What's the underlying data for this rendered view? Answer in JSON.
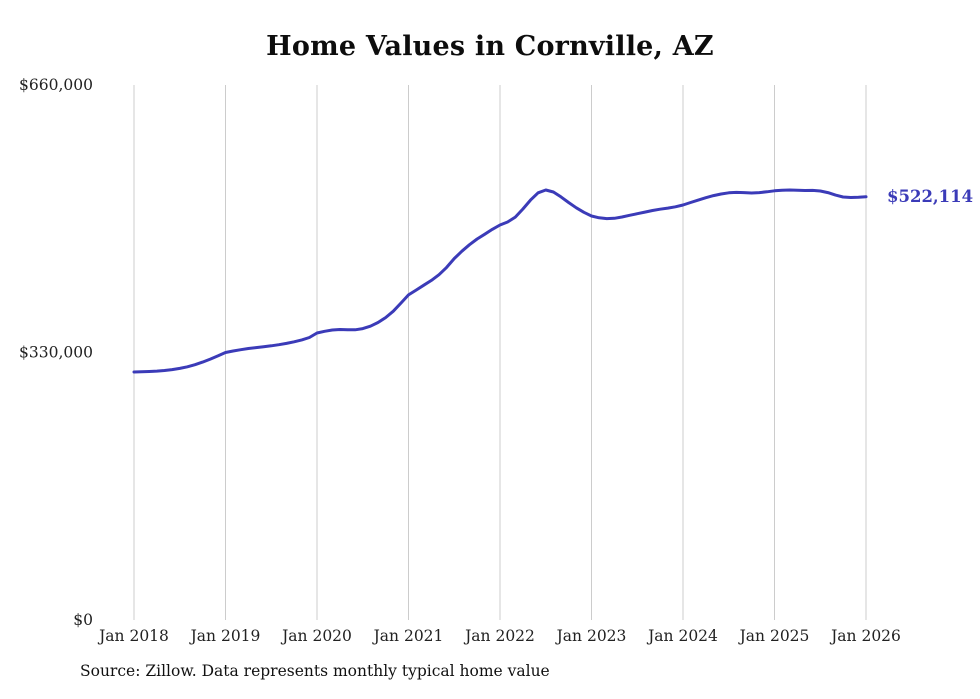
{
  "title": "Home Values in Cornville, AZ",
  "source_note": "Source: Zillow. Data represents monthly typical home value",
  "colors": {
    "line": "#3b3bb8",
    "gridline": "#cccccc",
    "text": "#222222",
    "title": "#0d0d0d"
  },
  "chart_data": {
    "type": "line",
    "title": "Home Values in Cornville, AZ",
    "xlabel": "",
    "ylabel": "",
    "ylim": [
      0,
      660000
    ],
    "grid": "vertical-only",
    "legend": "none",
    "frequency": "monthly",
    "x_start": "2018-01",
    "x_end": "2026-01",
    "x_tick_labels": [
      "Jan 2018",
      "Jan 2019",
      "Jan 2020",
      "Jan 2021",
      "Jan 2022",
      "Jan 2023",
      "Jan 2024",
      "Jan 2025",
      "Jan 2026"
    ],
    "y_ticks": [
      {
        "label": "$0",
        "value": 0
      },
      {
        "label": "$330,000",
        "value": 330000
      },
      {
        "label": "$660,000",
        "value": 660000
      }
    ],
    "last_value": 522114,
    "last_value_label": "$522,114",
    "values": [
      306000,
      306200,
      306600,
      307100,
      307800,
      308900,
      310400,
      312400,
      315000,
      318200,
      321800,
      325800,
      330000,
      331900,
      333500,
      334900,
      336100,
      337200,
      338300,
      339600,
      341200,
      343200,
      345500,
      348500,
      354000,
      356200,
      357800,
      358400,
      358100,
      358000,
      359500,
      362500,
      367000,
      373000,
      381000,
      391000,
      401000,
      407000,
      413000,
      419000,
      426000,
      435000,
      446000,
      455000,
      463000,
      470000,
      476000,
      482000,
      487300,
      491000,
      497000,
      507000,
      518000,
      527000,
      530500,
      528000,
      522000,
      515000,
      508500,
      503000,
      498400,
      496200,
      495200,
      495600,
      497200,
      499200,
      501200,
      503200,
      505200,
      506800,
      508200,
      509800,
      512000,
      515000,
      518000,
      521000,
      523500,
      525500,
      527000,
      527500,
      527200,
      526800,
      527200,
      528200,
      529500,
      530200,
      530500,
      530200,
      529800,
      530000,
      529200,
      527200,
      524200,
      521800,
      521200,
      521500,
      522114
    ]
  }
}
